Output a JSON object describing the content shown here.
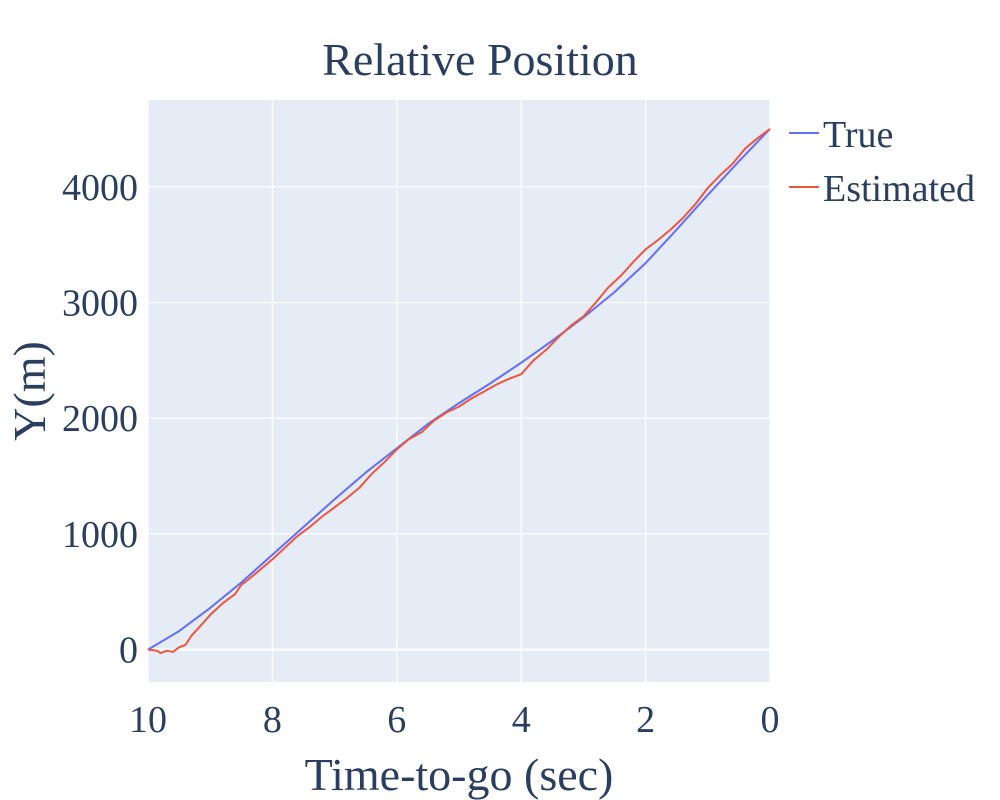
{
  "chart_data": {
    "type": "line",
    "title": "Relative Position",
    "xlabel": "Time-to-go (sec)",
    "ylabel": "Y(m)",
    "xlim": [
      10,
      0
    ],
    "ylim": [
      -280,
      4750
    ],
    "x_ticks": [
      10,
      8,
      6,
      4,
      2,
      0
    ],
    "y_ticks": [
      0,
      1000,
      2000,
      3000,
      4000
    ],
    "grid": true,
    "legend_position": "top-right",
    "plot_background": "#e5ecf6",
    "series": [
      {
        "name": "True",
        "color": "#636efa",
        "x": [
          10,
          9.5,
          9,
          8.5,
          8,
          7.5,
          7,
          6.5,
          6,
          5.5,
          5,
          4.5,
          4,
          3.5,
          3,
          2.5,
          2,
          1.5,
          1,
          0.5,
          0
        ],
        "y": [
          0,
          160,
          360,
          580,
          820,
          1060,
          1300,
          1530,
          1740,
          1950,
          2130,
          2300,
          2480,
          2670,
          2870,
          3090,
          3340,
          3630,
          3930,
          4220,
          4500
        ]
      },
      {
        "name": "Estimated",
        "color": "#ef553b",
        "x": [
          10,
          9.85,
          9.8,
          9.7,
          9.6,
          9.5,
          9.4,
          9.3,
          9.2,
          9.0,
          8.8,
          8.6,
          8.5,
          8.4,
          8.2,
          8.0,
          7.8,
          7.6,
          7.4,
          7.2,
          7.0,
          6.8,
          6.6,
          6.4,
          6.2,
          6.0,
          5.8,
          5.6,
          5.4,
          5.2,
          5.0,
          4.8,
          4.6,
          4.4,
          4.2,
          4.0,
          3.8,
          3.6,
          3.4,
          3.2,
          3.0,
          2.8,
          2.6,
          2.4,
          2.2,
          2.0,
          1.8,
          1.6,
          1.4,
          1.2,
          1.0,
          0.8,
          0.6,
          0.4,
          0.2,
          0
        ],
        "y": [
          0,
          -10,
          -30,
          -10,
          -20,
          20,
          40,
          120,
          180,
          300,
          400,
          480,
          560,
          600,
          690,
          780,
          880,
          980,
          1060,
          1150,
          1230,
          1310,
          1400,
          1520,
          1620,
          1730,
          1820,
          1880,
          1980,
          2050,
          2100,
          2170,
          2230,
          2290,
          2340,
          2380,
          2500,
          2590,
          2700,
          2800,
          2880,
          3000,
          3130,
          3230,
          3350,
          3460,
          3540,
          3630,
          3730,
          3850,
          3990,
          4100,
          4200,
          4330,
          4420,
          4500
        ]
      }
    ]
  }
}
